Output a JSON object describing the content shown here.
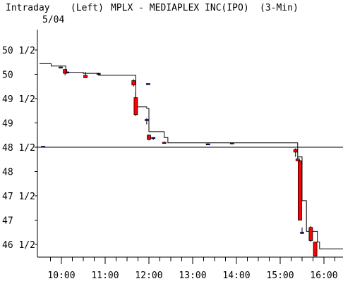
{
  "header": {
    "label": "Intraday",
    "date": "5/04",
    "side": "(Left)",
    "title": "MPLX - MEDIAPLEX INC(IPO)",
    "interval": "(3-Min)"
  },
  "colors": {
    "background": "#ffffff",
    "axis": "#000000",
    "down_body": "#ff0000",
    "up_body": "#0000ff",
    "reference_line": "#000000"
  },
  "chart_data": {
    "type": "candlestick",
    "title": "MPLX - MEDIAPLEX INC(IPO)",
    "subtitle": "(3-Min)",
    "xlabel": "",
    "ylabel": "",
    "x_ticks": [
      "10:00",
      "11:00",
      "12:00",
      "13:00",
      "14:00",
      "15:00",
      "16:00"
    ],
    "x_range": [
      "09:30",
      "16:30"
    ],
    "y_ticks": [
      "46 1/2",
      "47",
      "47 1/2",
      "48",
      "48 1/2",
      "49",
      "49 1/2",
      "50",
      "50 1/2"
    ],
    "ylim": [
      46.25,
      50.75
    ],
    "grid": false,
    "reference_line": {
      "value": 48.5
    },
    "step_line": [
      [
        "09:30",
        50.22
      ],
      [
        "09:46",
        50.17
      ],
      [
        "10:06",
        50.04
      ],
      [
        "10:30",
        50.02
      ],
      [
        "10:51",
        49.98
      ],
      [
        "11:36",
        49.98
      ],
      [
        "11:42",
        49.33
      ],
      [
        "11:57",
        49.3
      ],
      [
        "12:00",
        48.82
      ],
      [
        "12:21",
        48.7
      ],
      [
        "12:26",
        48.59
      ],
      [
        "13:27",
        48.59
      ],
      [
        "13:53",
        48.59
      ],
      [
        "15:18",
        48.59
      ],
      [
        "15:24",
        48.3
      ],
      [
        "15:30",
        47.4
      ],
      [
        "15:36",
        46.77
      ],
      [
        "15:51",
        46.55
      ],
      [
        "15:54",
        46.41
      ],
      [
        "16:30",
        46.41
      ]
    ],
    "candles": [
      {
        "time": "09:35",
        "open": 48.52,
        "high": 48.52,
        "low": 48.52,
        "close": 48.52
      },
      {
        "time": "09:59",
        "open": 50.15,
        "high": 50.16,
        "low": 50.12,
        "close": 50.13
      },
      {
        "time": "10:05",
        "open": 50.1,
        "high": 50.1,
        "low": 49.98,
        "close": 50.02
      },
      {
        "time": "10:08",
        "open": 50.04,
        "high": 50.05,
        "low": 50.02,
        "close": 50.05
      },
      {
        "time": "10:33",
        "open": 49.98,
        "high": 50.05,
        "low": 49.92,
        "close": 49.93
      },
      {
        "time": "10:51",
        "open": 50.02,
        "high": 50.03,
        "low": 50.01,
        "close": 50.02
      },
      {
        "time": "11:39",
        "open": 49.87,
        "high": 49.9,
        "low": 49.75,
        "close": 49.78
      },
      {
        "time": "11:42",
        "open": 49.52,
        "high": 49.63,
        "low": 49.14,
        "close": 49.17
      },
      {
        "time": "11:57",
        "open": 49.07,
        "high": 49.1,
        "low": 48.97,
        "close": 49.07
      },
      {
        "time": "11:59",
        "open": 49.81,
        "high": 49.81,
        "low": 49.81,
        "close": 49.81
      },
      {
        "time": "12:00",
        "open": 48.75,
        "high": 48.76,
        "low": 48.64,
        "close": 48.66
      },
      {
        "time": "12:06",
        "open": 48.68,
        "high": 48.7,
        "low": 48.65,
        "close": 48.7
      },
      {
        "time": "12:21",
        "open": 48.6,
        "high": 48.62,
        "low": 48.57,
        "close": 48.58
      },
      {
        "time": "13:21",
        "open": 48.57,
        "high": 48.57,
        "low": 48.57,
        "close": 48.57
      },
      {
        "time": "13:54",
        "open": 48.59,
        "high": 48.59,
        "low": 48.59,
        "close": 48.59
      },
      {
        "time": "15:21",
        "open": 48.45,
        "high": 48.48,
        "low": 48.3,
        "close": 48.4
      },
      {
        "time": "15:24",
        "open": 48.26,
        "high": 48.3,
        "low": 48.22,
        "close": 48.22
      },
      {
        "time": "15:27",
        "open": 48.22,
        "high": 48.24,
        "low": 47.0,
        "close": 47.0
      },
      {
        "time": "15:30",
        "open": 46.75,
        "high": 46.85,
        "low": 46.72,
        "close": 46.75
      },
      {
        "time": "15:42",
        "open": 46.85,
        "high": 46.88,
        "low": 46.55,
        "close": 46.58
      },
      {
        "time": "15:48",
        "open": 46.55,
        "high": 46.55,
        "low": 46.25,
        "close": 46.26
      }
    ]
  }
}
